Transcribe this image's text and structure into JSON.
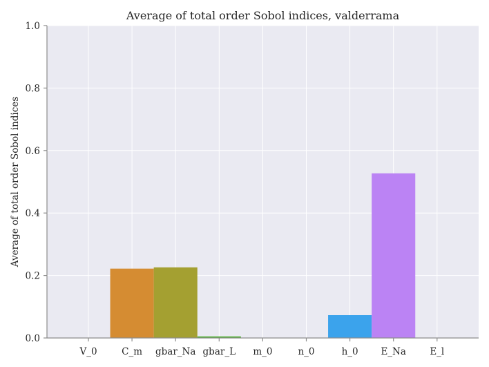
{
  "chart_data": {
    "type": "bar",
    "title": "Average of total order Sobol indices, valderrama",
    "xlabel": "",
    "ylabel": "Average of total order Sobol indices",
    "ylim": [
      0,
      1
    ],
    "yticks": [
      "0.0",
      "0.2",
      "0.4",
      "0.6",
      "0.8",
      "1.0"
    ],
    "grid": true,
    "categories": [
      "V_0",
      "C_m",
      "gbar_Na",
      "gbar_L",
      "m_0",
      "n_0",
      "h_0",
      "E_Na",
      "E_l"
    ],
    "values": [
      0.0,
      0.222,
      0.226,
      0.005,
      0.0,
      0.0,
      0.073,
      0.527,
      0.0
    ],
    "colors": [
      "#f77189",
      "#d58c32",
      "#a4a031",
      "#50b131",
      "#36ada4",
      "#38a9c5",
      "#3ba3ec",
      "#bb83f4",
      "#f564d4"
    ],
    "background_color": "#eaeaf2"
  }
}
